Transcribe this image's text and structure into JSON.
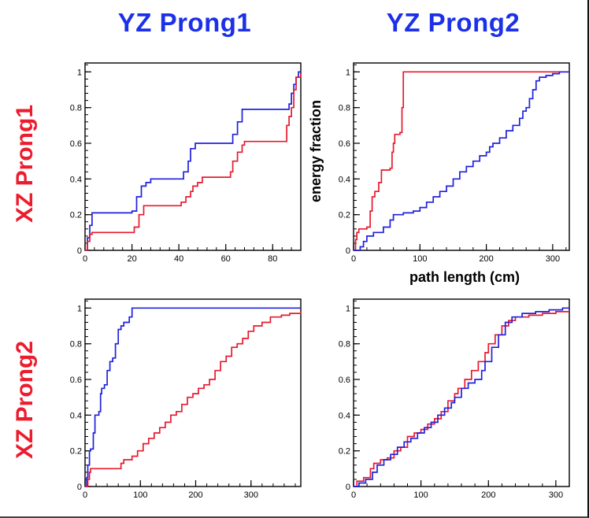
{
  "headers": {
    "col1": "YZ Prong1",
    "col2": "YZ Prong2"
  },
  "row_labels": {
    "row1": "XZ Prong1",
    "row2": "XZ Prong2"
  },
  "axis_labels": {
    "x": "path length (cm)",
    "y": "energy fraction"
  },
  "colors": {
    "header_blue": "#1b30e8",
    "label_red": "#ec1c2e",
    "series_red": "#e8192d",
    "series_blue": "#2020dd"
  },
  "chart_data": [
    {
      "id": "xz-prong1-yz-prong1",
      "type": "line",
      "title": "cumulative energy fraction vs path length, XZ Prong1 / YZ Prong1",
      "xlim": [
        0,
        92
      ],
      "ylim": [
        0,
        1.05
      ],
      "xticks": [
        0,
        20,
        40,
        60,
        80
      ],
      "yticks": [
        0,
        0.2,
        0.4,
        0.6,
        0.8,
        1
      ],
      "x_minor": 4,
      "y_minor": 0.04,
      "grid": false,
      "legend": "none",
      "series": [
        {
          "name": "blue-sample",
          "color_key": "series_blue",
          "step": true,
          "points": [
            [
              0,
              0
            ],
            [
              1,
              0.07
            ],
            [
              2,
              0.14
            ],
            [
              3,
              0.21
            ],
            [
              20,
              0.22
            ],
            [
              22,
              0.3
            ],
            [
              24,
              0.36
            ],
            [
              26,
              0.38
            ],
            [
              28,
              0.4
            ],
            [
              40,
              0.4
            ],
            [
              42,
              0.44
            ],
            [
              44,
              0.5
            ],
            [
              45,
              0.57
            ],
            [
              47,
              0.6
            ],
            [
              62,
              0.6
            ],
            [
              63,
              0.65
            ],
            [
              65,
              0.72
            ],
            [
              67,
              0.79
            ],
            [
              86,
              0.79
            ],
            [
              87,
              0.82
            ],
            [
              88,
              0.88
            ],
            [
              89,
              0.93
            ],
            [
              90,
              0.97
            ],
            [
              91,
              1.0
            ],
            [
              92,
              1.0
            ]
          ]
        },
        {
          "name": "red-sample",
          "color_key": "series_red",
          "step": true,
          "points": [
            [
              0,
              0
            ],
            [
              1,
              0.05
            ],
            [
              2,
              0.09
            ],
            [
              3,
              0.1
            ],
            [
              20,
              0.1
            ],
            [
              21,
              0.13
            ],
            [
              23,
              0.2
            ],
            [
              25,
              0.25
            ],
            [
              40,
              0.25
            ],
            [
              41,
              0.27
            ],
            [
              43,
              0.3
            ],
            [
              45,
              0.33
            ],
            [
              46,
              0.36
            ],
            [
              48,
              0.38
            ],
            [
              50,
              0.41
            ],
            [
              60,
              0.41
            ],
            [
              62,
              0.44
            ],
            [
              63,
              0.5
            ],
            [
              65,
              0.55
            ],
            [
              67,
              0.59
            ],
            [
              68,
              0.61
            ],
            [
              85,
              0.61
            ],
            [
              86,
              0.7
            ],
            [
              87,
              0.75
            ],
            [
              88,
              0.8
            ],
            [
              89,
              0.9
            ],
            [
              90,
              0.97
            ],
            [
              92,
              0.99
            ]
          ]
        }
      ]
    },
    {
      "id": "xz-prong1-yz-prong2",
      "type": "line",
      "title": "cumulative energy fraction vs path length, XZ Prong1 / YZ Prong2",
      "xlim": [
        0,
        325
      ],
      "ylim": [
        0,
        1.05
      ],
      "xticks": [
        0,
        100,
        200,
        300
      ],
      "yticks": [
        0,
        0.2,
        0.4,
        0.6,
        0.8,
        1
      ],
      "x_minor": 20,
      "y_minor": 0.04,
      "grid": false,
      "legend": "none",
      "xlabel": "path length (cm)",
      "ylabel": "energy fraction",
      "series": [
        {
          "name": "red-sample",
          "color_key": "series_red",
          "step": true,
          "points": [
            [
              0,
              0
            ],
            [
              3,
              0.06
            ],
            [
              5,
              0.1
            ],
            [
              8,
              0.12
            ],
            [
              20,
              0.13
            ],
            [
              25,
              0.22
            ],
            [
              28,
              0.3
            ],
            [
              32,
              0.33
            ],
            [
              38,
              0.38
            ],
            [
              42,
              0.45
            ],
            [
              55,
              0.46
            ],
            [
              58,
              0.55
            ],
            [
              60,
              0.6
            ],
            [
              62,
              0.65
            ],
            [
              70,
              0.66
            ],
            [
              73,
              0.8
            ],
            [
              75,
              1.0
            ],
            [
              325,
              1.0
            ]
          ]
        },
        {
          "name": "blue-sample",
          "color_key": "series_blue",
          "step": true,
          "points": [
            [
              0,
              0
            ],
            [
              10,
              0.02
            ],
            [
              15,
              0.05
            ],
            [
              20,
              0.08
            ],
            [
              30,
              0.1
            ],
            [
              45,
              0.13
            ],
            [
              55,
              0.17
            ],
            [
              60,
              0.2
            ],
            [
              75,
              0.21
            ],
            [
              90,
              0.22
            ],
            [
              100,
              0.24
            ],
            [
              110,
              0.27
            ],
            [
              120,
              0.3
            ],
            [
              130,
              0.33
            ],
            [
              140,
              0.36
            ],
            [
              150,
              0.4
            ],
            [
              160,
              0.44
            ],
            [
              170,
              0.47
            ],
            [
              180,
              0.5
            ],
            [
              190,
              0.53
            ],
            [
              200,
              0.55
            ],
            [
              205,
              0.58
            ],
            [
              210,
              0.6
            ],
            [
              220,
              0.63
            ],
            [
              230,
              0.67
            ],
            [
              240,
              0.7
            ],
            [
              250,
              0.74
            ],
            [
              255,
              0.78
            ],
            [
              260,
              0.8
            ],
            [
              265,
              0.85
            ],
            [
              270,
              0.9
            ],
            [
              275,
              0.95
            ],
            [
              280,
              0.97
            ],
            [
              290,
              0.98
            ],
            [
              300,
              0.99
            ],
            [
              310,
              1.0
            ],
            [
              325,
              1.0
            ]
          ]
        }
      ]
    },
    {
      "id": "xz-prong2-yz-prong1",
      "type": "line",
      "title": "cumulative energy fraction vs path length, XZ Prong2 / YZ Prong1",
      "xlim": [
        0,
        390
      ],
      "ylim": [
        0,
        1.05
      ],
      "xticks": [
        0,
        100,
        200,
        300
      ],
      "yticks": [
        0,
        0.2,
        0.4,
        0.6,
        0.8,
        1
      ],
      "x_minor": 20,
      "y_minor": 0.04,
      "grid": false,
      "legend": "none",
      "series": [
        {
          "name": "blue-sample",
          "color_key": "series_blue",
          "step": true,
          "points": [
            [
              0,
              0
            ],
            [
              3,
              0.05
            ],
            [
              5,
              0.12
            ],
            [
              8,
              0.2
            ],
            [
              10,
              0.21
            ],
            [
              15,
              0.3
            ],
            [
              18,
              0.4
            ],
            [
              25,
              0.42
            ],
            [
              28,
              0.52
            ],
            [
              30,
              0.55
            ],
            [
              35,
              0.57
            ],
            [
              40,
              0.65
            ],
            [
              45,
              0.7
            ],
            [
              50,
              0.72
            ],
            [
              55,
              0.8
            ],
            [
              60,
              0.88
            ],
            [
              65,
              0.9
            ],
            [
              70,
              0.92
            ],
            [
              80,
              0.95
            ],
            [
              85,
              1.0
            ],
            [
              390,
              1.0
            ]
          ]
        },
        {
          "name": "red-sample",
          "color_key": "series_red",
          "step": true,
          "points": [
            [
              0,
              0
            ],
            [
              5,
              0.04
            ],
            [
              8,
              0.08
            ],
            [
              10,
              0.1
            ],
            [
              60,
              0.1
            ],
            [
              65,
              0.13
            ],
            [
              70,
              0.15
            ],
            [
              85,
              0.17
            ],
            [
              95,
              0.2
            ],
            [
              105,
              0.24
            ],
            [
              115,
              0.27
            ],
            [
              125,
              0.3
            ],
            [
              135,
              0.33
            ],
            [
              145,
              0.36
            ],
            [
              155,
              0.4
            ],
            [
              165,
              0.42
            ],
            [
              175,
              0.46
            ],
            [
              185,
              0.5
            ],
            [
              195,
              0.52
            ],
            [
              205,
              0.55
            ],
            [
              215,
              0.57
            ],
            [
              225,
              0.6
            ],
            [
              235,
              0.65
            ],
            [
              245,
              0.7
            ],
            [
              255,
              0.73
            ],
            [
              265,
              0.78
            ],
            [
              275,
              0.8
            ],
            [
              285,
              0.83
            ],
            [
              295,
              0.87
            ],
            [
              305,
              0.9
            ],
            [
              320,
              0.92
            ],
            [
              335,
              0.95
            ],
            [
              355,
              0.96
            ],
            [
              370,
              0.97
            ],
            [
              390,
              0.98
            ]
          ]
        }
      ]
    },
    {
      "id": "xz-prong2-yz-prong2",
      "type": "line",
      "title": "cumulative energy fraction vs path length, XZ Prong2 / YZ Prong2",
      "xlim": [
        0,
        320
      ],
      "ylim": [
        0,
        1.05
      ],
      "xticks": [
        0,
        100,
        200,
        300
      ],
      "yticks": [
        0,
        0.2,
        0.4,
        0.6,
        0.8,
        1
      ],
      "x_minor": 20,
      "y_minor": 0.04,
      "grid": false,
      "legend": "none",
      "series": [
        {
          "name": "red-sample",
          "color_key": "series_red",
          "step": true,
          "points": [
            [
              0,
              0
            ],
            [
              5,
              0.03
            ],
            [
              15,
              0.05
            ],
            [
              25,
              0.1
            ],
            [
              30,
              0.13
            ],
            [
              40,
              0.15
            ],
            [
              50,
              0.16
            ],
            [
              60,
              0.2
            ],
            [
              70,
              0.22
            ],
            [
              80,
              0.28
            ],
            [
              90,
              0.3
            ],
            [
              100,
              0.32
            ],
            [
              110,
              0.35
            ],
            [
              120,
              0.38
            ],
            [
              130,
              0.42
            ],
            [
              140,
              0.48
            ],
            [
              150,
              0.52
            ],
            [
              155,
              0.55
            ],
            [
              165,
              0.6
            ],
            [
              175,
              0.65
            ],
            [
              185,
              0.7
            ],
            [
              195,
              0.75
            ],
            [
              200,
              0.8
            ],
            [
              210,
              0.85
            ],
            [
              220,
              0.9
            ],
            [
              230,
              0.93
            ],
            [
              240,
              0.95
            ],
            [
              260,
              0.96
            ],
            [
              280,
              0.97
            ],
            [
              300,
              0.98
            ],
            [
              320,
              0.98
            ]
          ]
        },
        {
          "name": "blue-sample",
          "color_key": "series_blue",
          "step": true,
          "points": [
            [
              0,
              0
            ],
            [
              8,
              0.02
            ],
            [
              18,
              0.04
            ],
            [
              28,
              0.08
            ],
            [
              35,
              0.12
            ],
            [
              45,
              0.15
            ],
            [
              55,
              0.18
            ],
            [
              65,
              0.22
            ],
            [
              75,
              0.25
            ],
            [
              85,
              0.27
            ],
            [
              95,
              0.3
            ],
            [
              105,
              0.33
            ],
            [
              115,
              0.36
            ],
            [
              125,
              0.4
            ],
            [
              135,
              0.44
            ],
            [
              145,
              0.47
            ],
            [
              150,
              0.5
            ],
            [
              160,
              0.55
            ],
            [
              170,
              0.58
            ],
            [
              180,
              0.6
            ],
            [
              190,
              0.65
            ],
            [
              195,
              0.7
            ],
            [
              205,
              0.78
            ],
            [
              215,
              0.85
            ],
            [
              225,
              0.92
            ],
            [
              235,
              0.95
            ],
            [
              250,
              0.97
            ],
            [
              270,
              0.98
            ],
            [
              290,
              0.99
            ],
            [
              310,
              1.0
            ],
            [
              320,
              1.0
            ]
          ]
        }
      ]
    }
  ]
}
